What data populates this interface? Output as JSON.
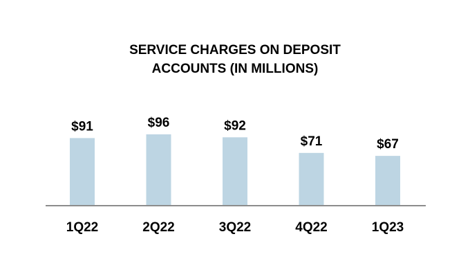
{
  "chart_data": {
    "type": "bar",
    "title_lines": [
      "SERVICE CHARGES ON DEPOSIT",
      "ACCOUNTS (IN MILLIONS)"
    ],
    "categories": [
      "1Q22",
      "2Q22",
      "3Q22",
      "4Q22",
      "1Q23"
    ],
    "values": [
      91,
      96,
      92,
      71,
      67
    ],
    "value_labels": [
      "$91",
      "$96",
      "$92",
      "$71",
      "$67"
    ],
    "xlabel": "",
    "ylabel": "",
    "grid": false,
    "legend": "none",
    "colors": {
      "bar": "#bdd5e3",
      "axis": "#8c8c8c",
      "text": "#000000"
    }
  }
}
